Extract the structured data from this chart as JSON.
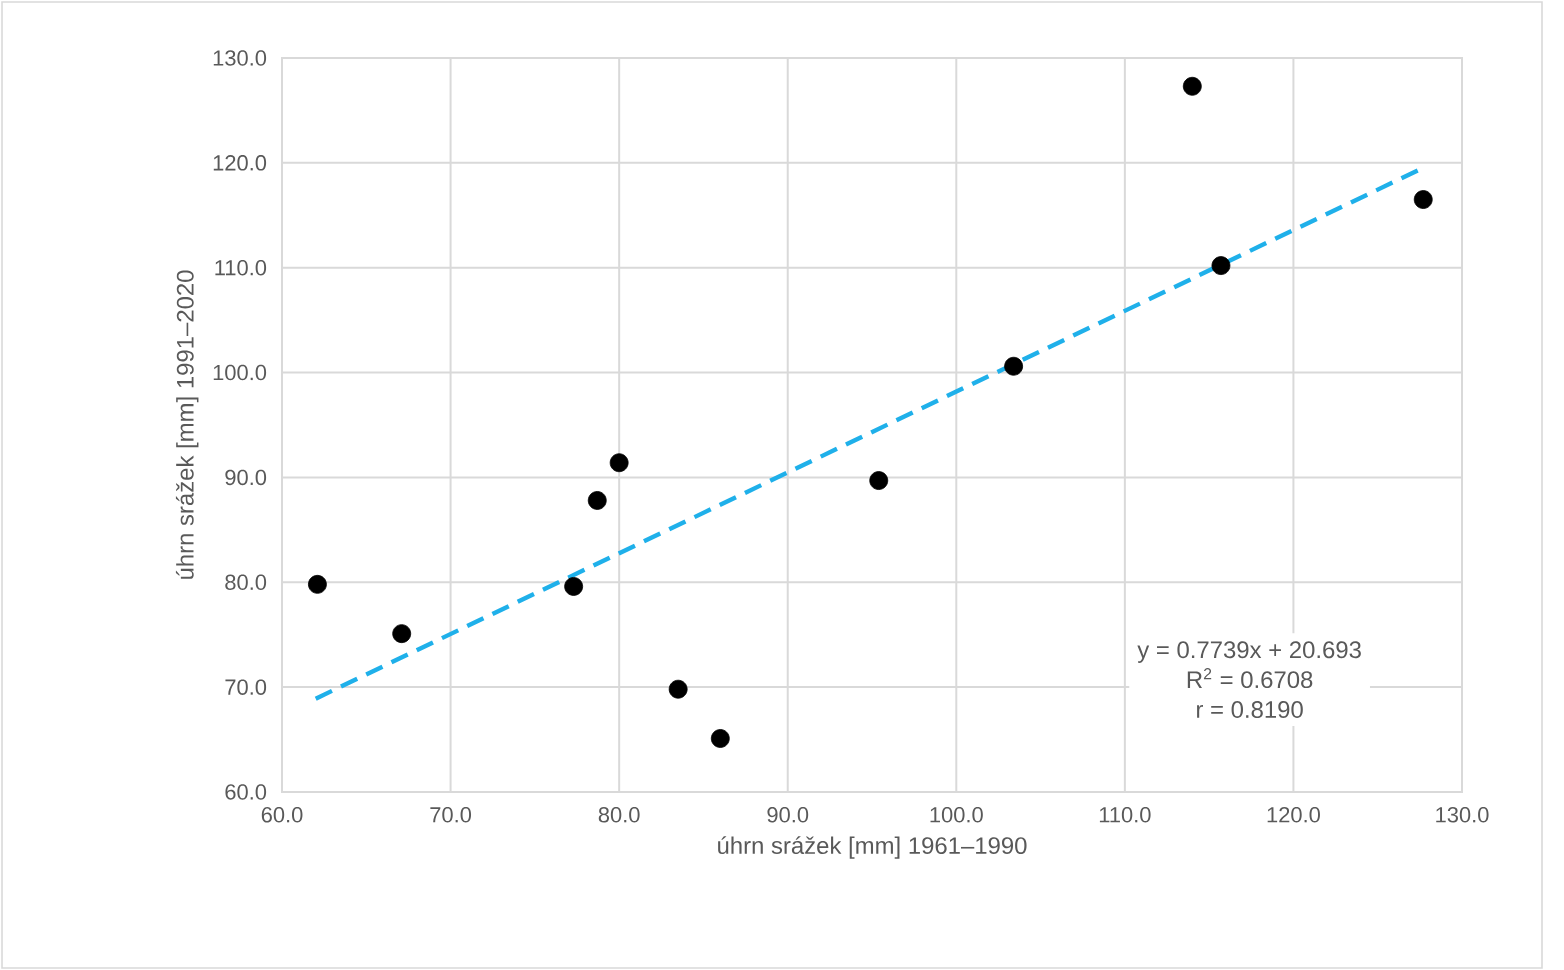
{
  "chart_data": {
    "type": "scatter",
    "xlabel": "úhrn srážek [mm] 1961–1990",
    "ylabel": "úhrn srážek [mm] 1991–2020",
    "xlim": [
      60,
      130
    ],
    "ylim": [
      60,
      130
    ],
    "xticks": [
      {
        "value": 60,
        "label": "60.0"
      },
      {
        "value": 70,
        "label": "70.0"
      },
      {
        "value": 80,
        "label": "80.0"
      },
      {
        "value": 90,
        "label": "90.0"
      },
      {
        "value": 100,
        "label": "100.0"
      },
      {
        "value": 110,
        "label": "110.0"
      },
      {
        "value": 120,
        "label": "120.0"
      },
      {
        "value": 130,
        "label": "130.0"
      }
    ],
    "yticks": [
      {
        "value": 60,
        "label": "60.0"
      },
      {
        "value": 70,
        "label": "70.0"
      },
      {
        "value": 80,
        "label": "80.0"
      },
      {
        "value": 90,
        "label": "90.0"
      },
      {
        "value": 100,
        "label": "100.0"
      },
      {
        "value": 110,
        "label": "110.0"
      },
      {
        "value": 120,
        "label": "120.0"
      },
      {
        "value": 130,
        "label": "130.0"
      }
    ],
    "grid": true,
    "marker": "circle",
    "series": [
      {
        "color": "#000000",
        "x": [
          62.1,
          67.1,
          77.3,
          78.7,
          80.0,
          83.5,
          86.0,
          95.4,
          103.4,
          114.0,
          115.7,
          127.7
        ],
        "values": [
          79.8,
          75.1,
          79.6,
          87.8,
          91.4,
          69.8,
          65.1,
          89.7,
          100.6,
          127.3,
          110.2,
          116.5
        ]
      },
      {
        "type": "line",
        "color": "#1fb0ea",
        "line_style": "dashed",
        "marker": "none",
        "x": [
          62.0,
          127.8
        ],
        "values": [
          68.9,
          119.6
        ]
      }
    ],
    "annotations": [
      "y = 0.7739x + 20.693",
      "R$^{2}$ = 0.6708",
      "r = 0.8190"
    ]
  }
}
